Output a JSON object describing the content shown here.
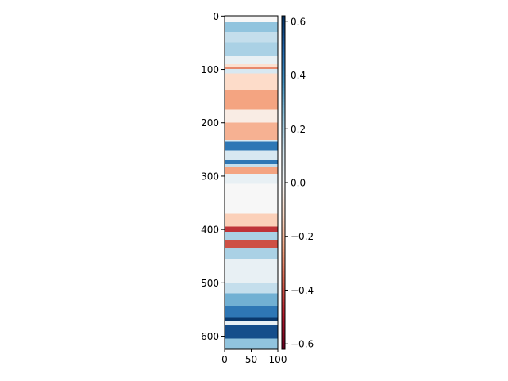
{
  "chart_data": {
    "type": "heatmap",
    "title": "",
    "xlabel": "",
    "ylabel": "",
    "colormap": "RdBu_r",
    "xlim": [
      0,
      100
    ],
    "ylim": [
      0,
      625
    ],
    "y_inverted": true,
    "x_ticks": [
      "0",
      "50",
      "100"
    ],
    "y_ticks": [
      "0",
      "100",
      "200",
      "300",
      "400",
      "500",
      "600"
    ],
    "colorbar": {
      "vmin": -0.62,
      "vmax": 0.62,
      "ticks": [
        "0.6",
        "0.4",
        "0.2",
        "0.0",
        "−0.2",
        "−0.4",
        "−0.6"
      ],
      "tick_values": [
        0.6,
        0.4,
        0.2,
        0.0,
        -0.2,
        -0.4,
        -0.6
      ]
    },
    "rows_note": "value per row band; each band spans rows [start, end)",
    "bands": [
      {
        "start": 0,
        "end": 12,
        "value": 0.0
      },
      {
        "start": 12,
        "end": 30,
        "value": 0.25
      },
      {
        "start": 30,
        "end": 50,
        "value": 0.15
      },
      {
        "start": 50,
        "end": 75,
        "value": 0.2
      },
      {
        "start": 75,
        "end": 90,
        "value": 0.05
      },
      {
        "start": 90,
        "end": 96,
        "value": -0.1
      },
      {
        "start": 96,
        "end": 100,
        "value": -0.3
      },
      {
        "start": 100,
        "end": 108,
        "value": 0.1
      },
      {
        "start": 108,
        "end": 140,
        "value": -0.12
      },
      {
        "start": 140,
        "end": 175,
        "value": -0.25
      },
      {
        "start": 175,
        "end": 200,
        "value": -0.05
      },
      {
        "start": 200,
        "end": 232,
        "value": -0.22
      },
      {
        "start": 232,
        "end": 236,
        "value": 0.1
      },
      {
        "start": 236,
        "end": 252,
        "value": 0.45
      },
      {
        "start": 252,
        "end": 270,
        "value": 0.1
      },
      {
        "start": 270,
        "end": 278,
        "value": 0.45
      },
      {
        "start": 278,
        "end": 284,
        "value": 0.15
      },
      {
        "start": 284,
        "end": 296,
        "value": -0.25
      },
      {
        "start": 296,
        "end": 315,
        "value": 0.05
      },
      {
        "start": 315,
        "end": 370,
        "value": 0.0
      },
      {
        "start": 370,
        "end": 395,
        "value": -0.15
      },
      {
        "start": 395,
        "end": 405,
        "value": -0.45
      },
      {
        "start": 405,
        "end": 420,
        "value": 0.2
      },
      {
        "start": 420,
        "end": 435,
        "value": -0.4
      },
      {
        "start": 435,
        "end": 455,
        "value": 0.2
      },
      {
        "start": 455,
        "end": 475,
        "value": 0.05
      },
      {
        "start": 475,
        "end": 500,
        "value": 0.05
      },
      {
        "start": 500,
        "end": 520,
        "value": 0.15
      },
      {
        "start": 520,
        "end": 545,
        "value": 0.3
      },
      {
        "start": 545,
        "end": 565,
        "value": 0.45
      },
      {
        "start": 565,
        "end": 572,
        "value": 0.6
      },
      {
        "start": 572,
        "end": 580,
        "value": 0.05
      },
      {
        "start": 580,
        "end": 605,
        "value": 0.55
      },
      {
        "start": 605,
        "end": 625,
        "value": 0.25
      }
    ]
  }
}
